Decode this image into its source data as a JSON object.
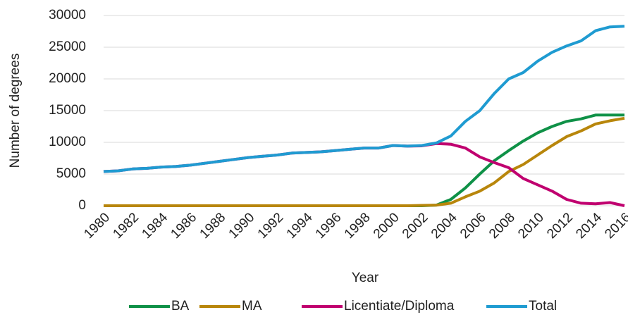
{
  "chart_data": {
    "type": "line",
    "y_label": "Number of degrees",
    "x_label": "Year",
    "x": [
      1980,
      1981,
      1982,
      1983,
      1984,
      1985,
      1986,
      1987,
      1988,
      1989,
      1990,
      1991,
      1992,
      1993,
      1994,
      1995,
      1996,
      1997,
      1998,
      1999,
      2000,
      2001,
      2002,
      2003,
      2004,
      2005,
      2006,
      2007,
      2008,
      2009,
      2010,
      2011,
      2012,
      2013,
      2014,
      2015,
      2016
    ],
    "series": [
      {
        "name": "BA",
        "color": "#0f9147",
        "values": [
          0,
          0,
          0,
          0,
          0,
          0,
          0,
          0,
          0,
          0,
          0,
          0,
          0,
          0,
          0,
          0,
          0,
          0,
          0,
          0,
          0,
          0,
          0,
          100,
          1000,
          2800,
          5000,
          7100,
          8700,
          10200,
          11500,
          12500,
          13300,
          13700,
          14300,
          14300,
          14300
        ]
      },
      {
        "name": "MA",
        "color": "#b8860b",
        "values": [
          0,
          0,
          0,
          0,
          0,
          0,
          0,
          0,
          0,
          0,
          0,
          0,
          0,
          0,
          0,
          0,
          0,
          0,
          0,
          0,
          0,
          0,
          50,
          100,
          400,
          1400,
          2300,
          3600,
          5400,
          6500,
          8000,
          9500,
          10900,
          11800,
          12900,
          13400,
          13800
        ]
      },
      {
        "name": "Licentiate/Diploma",
        "color": "#c0006f",
        "values": [
          5400,
          5500,
          5800,
          5900,
          6100,
          6200,
          6400,
          6700,
          7000,
          7300,
          7600,
          7800,
          8000,
          8300,
          8400,
          8500,
          8700,
          8900,
          9100,
          9100,
          9500,
          9400,
          9450,
          9800,
          9700,
          9100,
          7700,
          6800,
          6000,
          4300,
          3300,
          2300,
          1000,
          400,
          300,
          500,
          0
        ]
      },
      {
        "name": "Total",
        "color": "#1f9bd1",
        "values": [
          5400,
          5500,
          5800,
          5900,
          6100,
          6200,
          6400,
          6700,
          7000,
          7300,
          7600,
          7800,
          8000,
          8300,
          8400,
          8500,
          8700,
          8900,
          9100,
          9100,
          9500,
          9400,
          9500,
          9900,
          11000,
          13300,
          15000,
          17700,
          20000,
          21000,
          22800,
          24200,
          25200,
          26000,
          27600,
          28200,
          28300
        ]
      }
    ],
    "xlim": [
      1980,
      2016
    ],
    "xticks": [
      1980,
      1982,
      1984,
      1986,
      1988,
      1990,
      1992,
      1994,
      1996,
      1998,
      2000,
      2002,
      2004,
      2006,
      2008,
      2010,
      2012,
      2014,
      2016
    ],
    "ylim": [
      0,
      30000
    ],
    "yticks": [
      0,
      5000,
      10000,
      15000,
      20000,
      25000,
      30000
    ],
    "grid": true,
    "legend": "bottom"
  }
}
